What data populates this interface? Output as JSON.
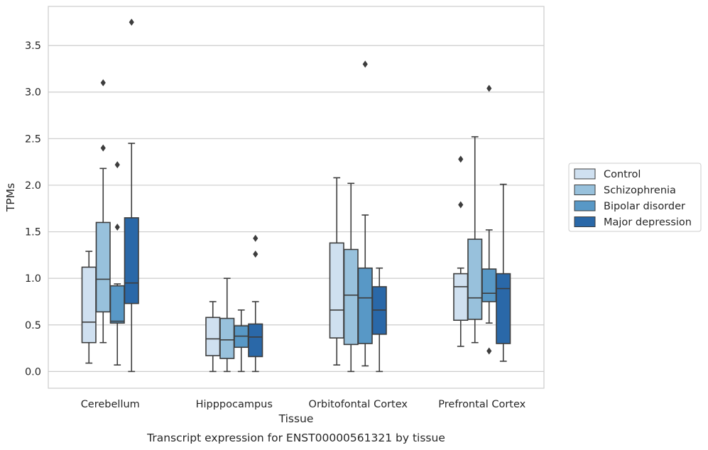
{
  "chart_data": {
    "type": "box",
    "title": "",
    "caption": "Transcript expression for ENST00000561321 by tissue",
    "xlabel": "Tissue",
    "ylabel": "TPMs",
    "ylim": [
      -0.18,
      3.92
    ],
    "yticks": [
      0.0,
      0.5,
      1.0,
      1.5,
      2.0,
      2.5,
      3.0,
      3.5
    ],
    "ytick_labels": [
      "0.0",
      "0.5",
      "1.0",
      "1.5",
      "2.0",
      "2.5",
      "3.0",
      "3.5"
    ],
    "grid": "horizontal",
    "legend_position": "right",
    "categories": [
      "Cerebellum",
      "Hipppocampus",
      "Orbitofontal Cortex",
      "Prefrontal Cortex"
    ],
    "series": [
      {
        "name": "Control",
        "color": "#cfe0f0",
        "boxes": [
          {
            "whislo": 0.09,
            "q1": 0.31,
            "med": 0.53,
            "q3": 1.12,
            "whishi": 1.29,
            "fliers": []
          },
          {
            "whislo": 0.0,
            "q1": 0.17,
            "med": 0.35,
            "q3": 0.58,
            "whishi": 0.75,
            "fliers": []
          },
          {
            "whislo": 0.07,
            "q1": 0.36,
            "med": 0.66,
            "q3": 1.38,
            "whishi": 2.08,
            "fliers": []
          },
          {
            "whislo": 0.27,
            "q1": 0.55,
            "med": 0.91,
            "q3": 1.05,
            "whishi": 1.11,
            "fliers": [
              1.79,
              2.28
            ]
          }
        ]
      },
      {
        "name": "Schizophrenia",
        "color": "#98c1dc",
        "boxes": [
          {
            "whislo": 0.31,
            "q1": 0.64,
            "med": 0.99,
            "q3": 1.6,
            "whishi": 2.18,
            "fliers": [
              2.4,
              3.1
            ]
          },
          {
            "whislo": 0.0,
            "q1": 0.14,
            "med": 0.34,
            "q3": 0.57,
            "whishi": 1.0,
            "fliers": []
          },
          {
            "whislo": 0.0,
            "q1": 0.29,
            "med": 0.82,
            "q3": 1.31,
            "whishi": 2.02,
            "fliers": []
          },
          {
            "whislo": 0.31,
            "q1": 0.56,
            "med": 0.79,
            "q3": 1.42,
            "whishi": 2.52,
            "fliers": []
          }
        ]
      },
      {
        "name": "Bipolar disorder",
        "color": "#5898c6",
        "boxes": [
          {
            "whislo": 0.07,
            "q1": 0.52,
            "med": 0.54,
            "q3": 0.92,
            "whishi": 0.94,
            "fliers": [
              1.55,
              2.22
            ]
          },
          {
            "whislo": 0.0,
            "q1": 0.26,
            "med": 0.38,
            "q3": 0.49,
            "whishi": 0.66,
            "fliers": []
          },
          {
            "whislo": 0.06,
            "q1": 0.3,
            "med": 0.79,
            "q3": 1.11,
            "whishi": 1.68,
            "fliers": [
              3.3
            ]
          },
          {
            "whislo": 0.52,
            "q1": 0.75,
            "med": 0.84,
            "q3": 1.1,
            "whishi": 1.52,
            "fliers": [
              0.22,
              3.04
            ]
          }
        ]
      },
      {
        "name": "Major depression",
        "color": "#2a68a8",
        "boxes": [
          {
            "whislo": 0.0,
            "q1": 0.73,
            "med": 0.95,
            "q3": 1.65,
            "whishi": 2.45,
            "fliers": [
              3.75
            ]
          },
          {
            "whislo": 0.0,
            "q1": 0.16,
            "med": 0.37,
            "q3": 0.51,
            "whishi": 0.75,
            "fliers": [
              1.26,
              1.43
            ]
          },
          {
            "whislo": 0.0,
            "q1": 0.4,
            "med": 0.66,
            "q3": 0.91,
            "whishi": 1.11,
            "fliers": []
          },
          {
            "whislo": 0.11,
            "q1": 0.3,
            "med": 0.89,
            "q3": 1.05,
            "whishi": 2.01,
            "fliers": []
          }
        ]
      }
    ]
  }
}
